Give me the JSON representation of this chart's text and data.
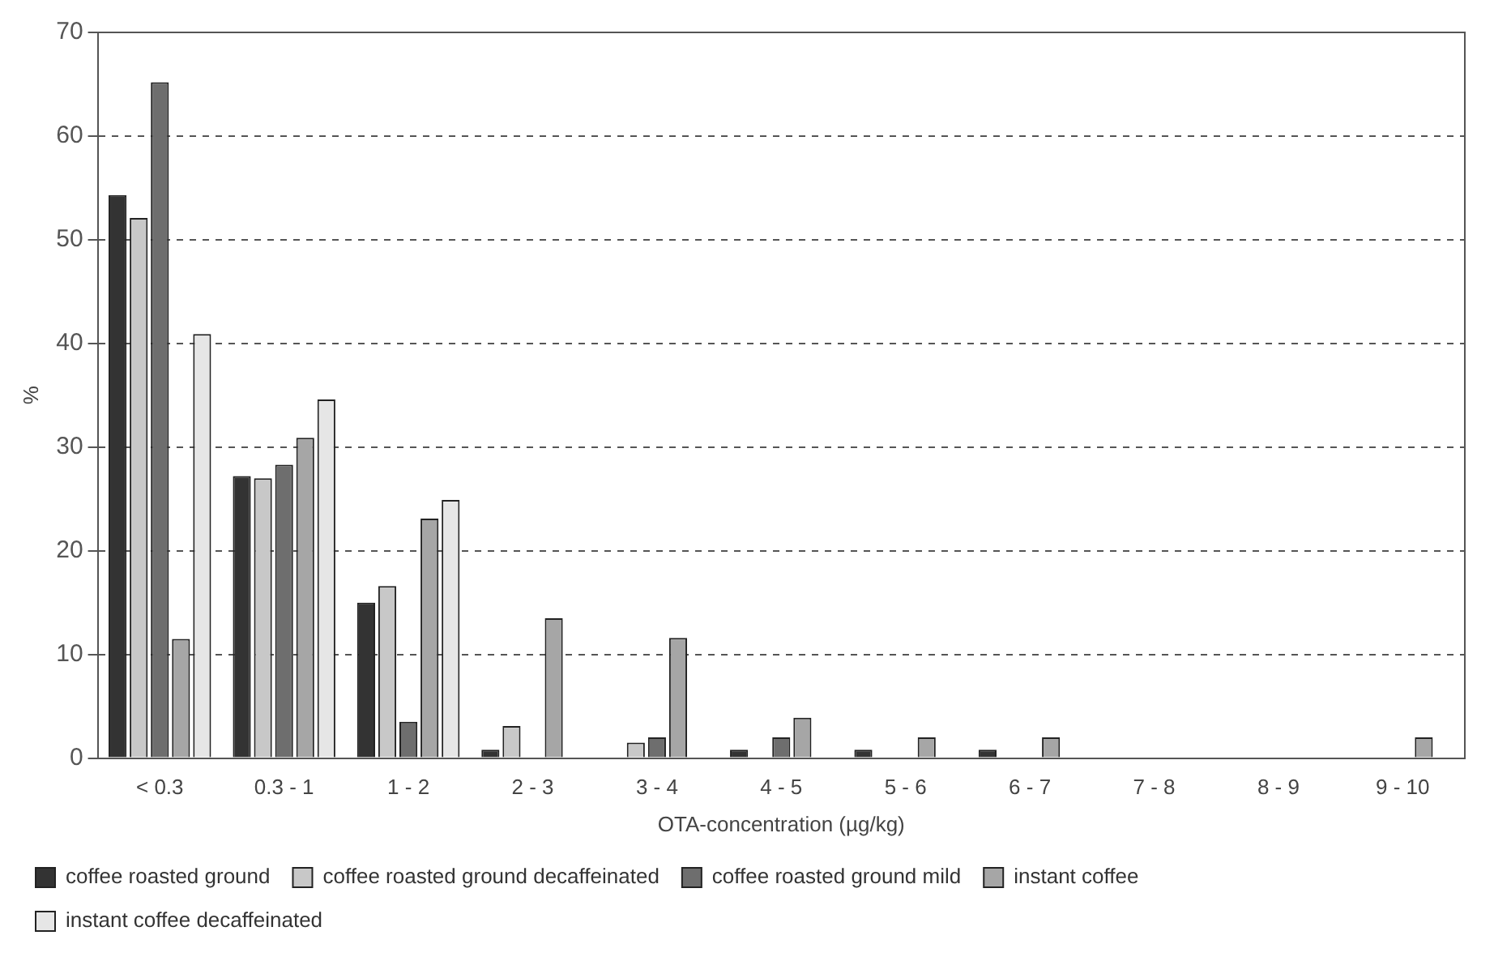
{
  "chart_data": {
    "type": "bar",
    "xlabel": "OTA-concentration (µg/kg)",
    "ylabel": "%",
    "categories": [
      "< 0.3",
      "0.3 - 1",
      "1 - 2",
      "2 - 3",
      "3 - 4",
      "4 - 5",
      "5 - 6",
      "6 - 7",
      "7 - 8",
      "8 - 9",
      "9 - 10"
    ],
    "series": [
      {
        "name": "coffee roasted ground",
        "color": "#333333",
        "values": [
          54.3,
          27.2,
          15,
          0.8,
          0,
          0.8,
          0.8,
          0.8,
          0,
          0,
          0
        ]
      },
      {
        "name": "coffee roasted ground decaffeinated",
        "color": "#c8c8c8",
        "values": [
          52.1,
          27,
          16.6,
          3.1,
          1.5,
          0,
          0,
          0,
          0,
          0,
          0
        ]
      },
      {
        "name": "coffee roasted ground mild",
        "color": "#6e6e6e",
        "values": [
          65.2,
          28.3,
          3.5,
          0,
          2,
          2,
          0,
          0,
          0,
          0,
          0
        ]
      },
      {
        "name": "instant coffee",
        "color": "#a6a6a6",
        "values": [
          11.5,
          30.9,
          23.1,
          13.5,
          11.6,
          3.9,
          2,
          2,
          0,
          0,
          2
        ]
      },
      {
        "name": "instant coffee decaffeinated",
        "color": "#e6e6e6",
        "values": [
          40.9,
          34.6,
          24.9,
          0,
          0,
          0,
          0,
          0,
          0,
          0,
          0
        ]
      }
    ],
    "ylim": [
      0,
      70
    ],
    "yticks": [
      0,
      10,
      20,
      30,
      40,
      50,
      60,
      70
    ],
    "grid": "y",
    "legend": "bottom"
  }
}
